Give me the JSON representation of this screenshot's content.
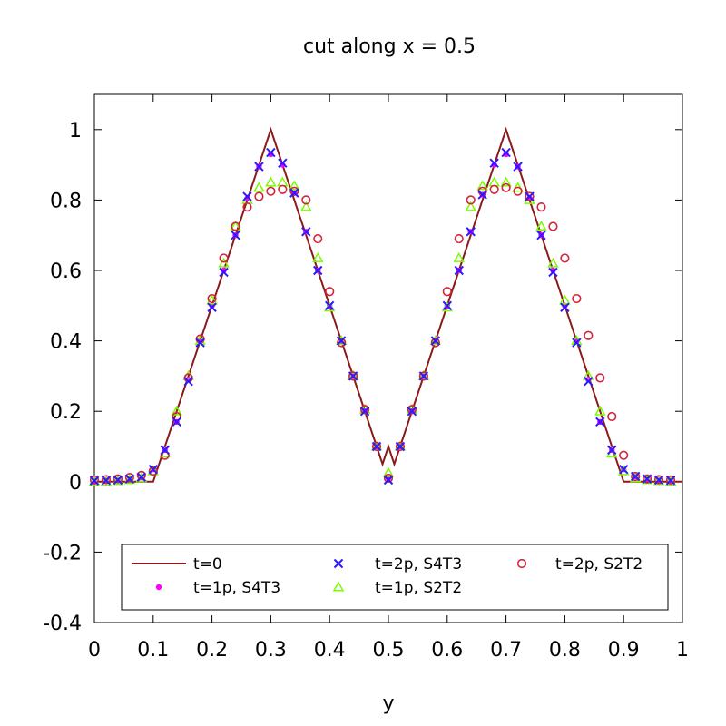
{
  "chart_data": {
    "type": "line",
    "title": "cut along x = 0.5",
    "xlabel": "y",
    "ylabel": "",
    "xlim": [
      0,
      1
    ],
    "ylim": [
      -0.4,
      1.1
    ],
    "x_ticks": [
      "0",
      "0.1",
      "0.2",
      "0.3",
      "0.4",
      "0.5",
      "0.6",
      "0.7",
      "0.8",
      "0.9",
      "1"
    ],
    "y_ticks": [
      "-0.4",
      "-0.2",
      "0",
      "0.2",
      "0.4",
      "0.6",
      "0.8",
      "1"
    ],
    "x_tick_values": [
      0,
      0.1,
      0.2,
      0.3,
      0.4,
      0.5,
      0.6,
      0.7,
      0.8,
      0.9,
      1
    ],
    "y_tick_values": [
      -0.4,
      -0.2,
      0,
      0.2,
      0.4,
      0.6,
      0.8,
      1
    ],
    "legend_position": "bottom",
    "series": [
      {
        "name": "t=0",
        "style": "line",
        "color": "#8b1a1a",
        "x": [
          0,
          0.1,
          0.3,
          0.49,
          0.5,
          0.51,
          0.7,
          0.9,
          1.0
        ],
        "y": [
          0,
          0,
          1,
          0.05,
          0.1,
          0.05,
          1,
          0,
          0
        ]
      },
      {
        "name": "t=2p, S4T3",
        "style": "x",
        "color": "#2a1aff",
        "x": [
          0.0,
          0.02,
          0.04,
          0.06,
          0.08,
          0.1,
          0.12,
          0.14,
          0.16,
          0.18,
          0.2,
          0.22,
          0.24,
          0.26,
          0.28,
          0.3,
          0.32,
          0.34,
          0.36,
          0.38,
          0.4,
          0.42,
          0.44,
          0.46,
          0.48,
          0.5,
          0.52,
          0.54,
          0.56,
          0.58,
          0.6,
          0.62,
          0.64,
          0.66,
          0.68,
          0.7,
          0.72,
          0.74,
          0.76,
          0.78,
          0.8,
          0.82,
          0.84,
          0.86,
          0.88,
          0.9,
          0.92,
          0.94,
          0.96,
          0.98
        ],
        "y": [
          0.003,
          0.004,
          0.005,
          0.008,
          0.013,
          0.035,
          0.09,
          0.17,
          0.285,
          0.395,
          0.495,
          0.595,
          0.7,
          0.81,
          0.895,
          0.935,
          0.905,
          0.82,
          0.71,
          0.6,
          0.5,
          0.4,
          0.3,
          0.2,
          0.1,
          0.005,
          0.1,
          0.2,
          0.3,
          0.4,
          0.5,
          0.6,
          0.71,
          0.815,
          0.905,
          0.935,
          0.895,
          0.81,
          0.7,
          0.595,
          0.495,
          0.395,
          0.285,
          0.17,
          0.09,
          0.035,
          0.015,
          0.008,
          0.005,
          0.004
        ]
      },
      {
        "name": "t=2p, S2T2",
        "style": "circle",
        "color": "#d4233c",
        "x": [
          0.0,
          0.02,
          0.04,
          0.06,
          0.08,
          0.1,
          0.12,
          0.14,
          0.16,
          0.18,
          0.2,
          0.22,
          0.24,
          0.26,
          0.28,
          0.3,
          0.32,
          0.34,
          0.36,
          0.38,
          0.4,
          0.42,
          0.44,
          0.46,
          0.48,
          0.5,
          0.52,
          0.54,
          0.56,
          0.58,
          0.6,
          0.62,
          0.64,
          0.66,
          0.68,
          0.7,
          0.72,
          0.74,
          0.76,
          0.78,
          0.8,
          0.82,
          0.84,
          0.86,
          0.88,
          0.9,
          0.92,
          0.94,
          0.96,
          0.98
        ],
        "y": [
          0.005,
          0.006,
          0.008,
          0.012,
          0.018,
          0.03,
          0.075,
          0.185,
          0.295,
          0.405,
          0.52,
          0.635,
          0.725,
          0.78,
          0.81,
          0.825,
          0.83,
          0.825,
          0.8,
          0.69,
          0.54,
          0.395,
          0.3,
          0.205,
          0.1,
          0.01,
          0.1,
          0.205,
          0.3,
          0.395,
          0.54,
          0.69,
          0.8,
          0.825,
          0.83,
          0.835,
          0.825,
          0.81,
          0.78,
          0.725,
          0.635,
          0.52,
          0.415,
          0.295,
          0.185,
          0.075,
          0.015,
          0.008,
          0.006,
          0.005
        ]
      },
      {
        "name": "t=1p, S4T3",
        "style": "dot",
        "color": "#ff00ff",
        "x": [
          0.0,
          0.02,
          0.04,
          0.06,
          0.08,
          0.1,
          0.12,
          0.14,
          0.16,
          0.18,
          0.2,
          0.22,
          0.24,
          0.26,
          0.28,
          0.3,
          0.32,
          0.34,
          0.36,
          0.38,
          0.4,
          0.42,
          0.44,
          0.46,
          0.48,
          0.5,
          0.52,
          0.54,
          0.56,
          0.58,
          0.6,
          0.62,
          0.64,
          0.66,
          0.68,
          0.7,
          0.72,
          0.74,
          0.76,
          0.78,
          0.8,
          0.82,
          0.84,
          0.86,
          0.88,
          0.9,
          0.92,
          0.94,
          0.96,
          0.98
        ],
        "y": [
          0.003,
          0.004,
          0.005,
          0.008,
          0.013,
          0.035,
          0.09,
          0.17,
          0.29,
          0.4,
          0.5,
          0.6,
          0.7,
          0.805,
          0.895,
          0.93,
          0.9,
          0.82,
          0.71,
          0.6,
          0.5,
          0.4,
          0.3,
          0.2,
          0.1,
          0.01,
          0.1,
          0.2,
          0.3,
          0.4,
          0.5,
          0.6,
          0.71,
          0.815,
          0.9,
          0.93,
          0.895,
          0.805,
          0.7,
          0.6,
          0.5,
          0.4,
          0.29,
          0.17,
          0.09,
          0.035,
          0.015,
          0.008,
          0.005,
          0.004
        ]
      },
      {
        "name": "t=1p, S2T2",
        "style": "triangle",
        "color": "#7cfc00",
        "x": [
          0.0,
          0.02,
          0.04,
          0.06,
          0.08,
          0.1,
          0.12,
          0.14,
          0.16,
          0.18,
          0.2,
          0.22,
          0.24,
          0.26,
          0.28,
          0.3,
          0.32,
          0.34,
          0.36,
          0.38,
          0.4,
          0.42,
          0.44,
          0.46,
          0.48,
          0.5,
          0.52,
          0.54,
          0.56,
          0.58,
          0.6,
          0.62,
          0.64,
          0.66,
          0.68,
          0.7,
          0.72,
          0.74,
          0.76,
          0.78,
          0.8,
          0.82,
          0.84,
          0.86,
          0.88,
          0.9,
          0.92,
          0.94,
          0.96,
          0.98
        ],
        "y": [
          0.0,
          0.0,
          0.002,
          0.005,
          0.01,
          0.03,
          0.08,
          0.2,
          0.3,
          0.4,
          0.515,
          0.62,
          0.725,
          0.8,
          0.835,
          0.85,
          0.85,
          0.84,
          0.78,
          0.635,
          0.495,
          0.4,
          0.3,
          0.205,
          0.1,
          0.025,
          0.1,
          0.205,
          0.3,
          0.4,
          0.495,
          0.635,
          0.78,
          0.84,
          0.85,
          0.85,
          0.835,
          0.8,
          0.725,
          0.62,
          0.515,
          0.4,
          0.3,
          0.2,
          0.08,
          0.03,
          0.01,
          0.005,
          0.002,
          0.0
        ]
      }
    ],
    "legend": {
      "entries": [
        {
          "label": "t=0",
          "style": "line",
          "color": "#8b1a1a"
        },
        {
          "label": "t=2p, S4T3",
          "style": "x",
          "color": "#2a1aff"
        },
        {
          "label": "t=2p, S2T2",
          "style": "circle",
          "color": "#d4233c"
        },
        {
          "label": "t=1p, S4T3",
          "style": "dot",
          "color": "#ff00ff"
        },
        {
          "label": "t=1p, S2T2",
          "style": "triangle",
          "color": "#7cfc00"
        }
      ]
    }
  }
}
